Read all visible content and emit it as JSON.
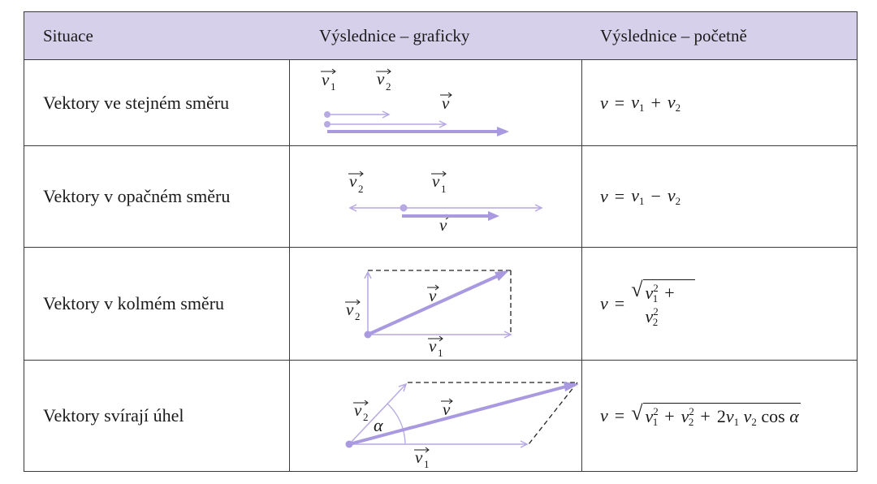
{
  "header": {
    "col1": "Situace",
    "col2": "Výslednice – graficky",
    "col3": "Výslednice – početně"
  },
  "rows": [
    {
      "situation": "Vektory ve stejném směru",
      "formula": "v = v1 + v2"
    },
    {
      "situation": "Vektory v opačném směru",
      "formula": "v = v1 − v2"
    },
    {
      "situation": "Vektory v kolmém směru",
      "formula": "v = √(v1² + v2²)"
    },
    {
      "situation": "Vektory svírají úhel",
      "formula": "v = √(v1² + v2² + 2 v1 v2 cos α)"
    }
  ],
  "diagram_labels": {
    "v": "v",
    "v1": "v",
    "v2": "v",
    "sub1": "1",
    "sub2": "2",
    "alpha": "α"
  },
  "colors": {
    "header_bg": "#d6d0eb",
    "vector": "#b7a9e3",
    "vector_bold": "#a999e0",
    "grid": "#3a3a3a"
  }
}
